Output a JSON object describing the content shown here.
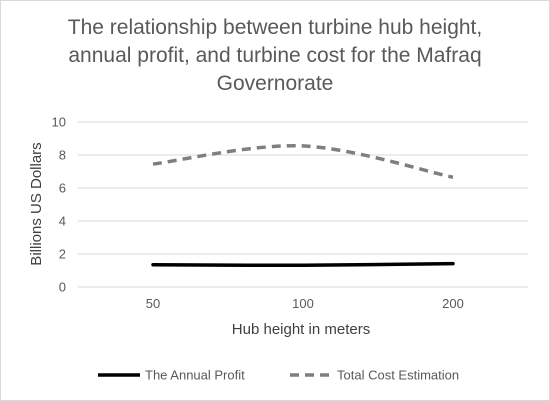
{
  "chart_data": {
    "type": "line",
    "title": "The relationship between turbine hub height, annual profit, and turbine cost for the Mafraq Governorate",
    "xlabel": "Hub height in meters",
    "ylabel": "Billions US Dollars",
    "categories": [
      "50",
      "100",
      "200"
    ],
    "ylim": [
      0,
      10
    ],
    "yticks": [
      0,
      2,
      4,
      6,
      8,
      10
    ],
    "grid": true,
    "legend": "bottom",
    "series": [
      {
        "name": "The Annual Profit",
        "values": [
          1.35,
          1.32,
          1.42
        ],
        "color": "#000000",
        "style": "solid"
      },
      {
        "name": "Total Cost Estimation",
        "values": [
          7.45,
          8.55,
          6.65
        ],
        "color": "#7f7f7f",
        "style": "dashed"
      }
    ]
  }
}
